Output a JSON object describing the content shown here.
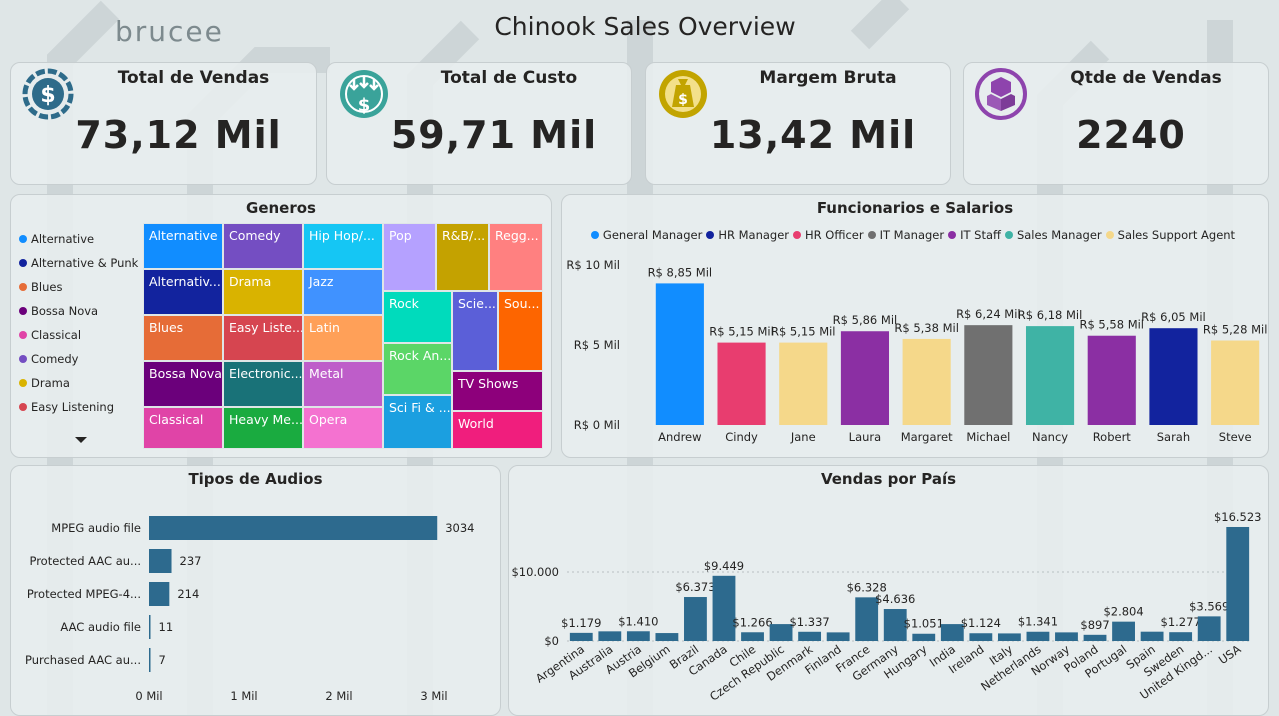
{
  "header": {
    "title": "Chinook Sales Overview",
    "logo_text": "brucee"
  },
  "kpis": [
    {
      "label": "Total de Vendas",
      "value": "73,12 Mil",
      "icon": "dollar-coin-icon",
      "color": "#2e6b8a"
    },
    {
      "label": "Total de Custo",
      "value": "59,71 Mil",
      "icon": "money-down-icon",
      "color": "#3aa39a"
    },
    {
      "label": "Margem Bruta",
      "value": "13,42 Mil",
      "icon": "money-bag-icon",
      "color": "#c2a400"
    },
    {
      "label": "Qtde de Vendas",
      "value": "2240",
      "icon": "boxes-icon",
      "color": "#8e44ad"
    }
  ],
  "genres": {
    "title": "Generos",
    "legend": [
      {
        "name": "Alternative",
        "color": "#118dff"
      },
      {
        "name": "Alternative & Punk",
        "color": "#12239e"
      },
      {
        "name": "Blues",
        "color": "#e66c37"
      },
      {
        "name": "Bossa Nova",
        "color": "#6b007b"
      },
      {
        "name": "Classical",
        "color": "#e044a7"
      },
      {
        "name": "Comedy",
        "color": "#744ec2"
      },
      {
        "name": "Drama",
        "color": "#d9b300"
      },
      {
        "name": "Easy Listening",
        "color": "#d64550"
      }
    ],
    "cells": [
      {
        "label": "Alternative",
        "color": "#118dff"
      },
      {
        "label": "Alternativ...",
        "color": "#12239e"
      },
      {
        "label": "Blues",
        "color": "#e66c37"
      },
      {
        "label": "Bossa Nova",
        "color": "#6b007b"
      },
      {
        "label": "Classical",
        "color": "#e044a7"
      },
      {
        "label": "Comedy",
        "color": "#744ec2"
      },
      {
        "label": "Drama",
        "color": "#d9b300"
      },
      {
        "label": "Easy Liste...",
        "color": "#d64550"
      },
      {
        "label": "Electronic...",
        "color": "#197278"
      },
      {
        "label": "Heavy Me...",
        "color": "#1aab40"
      },
      {
        "label": "Hip Hop/...",
        "color": "#15c6f4"
      },
      {
        "label": "Jazz",
        "color": "#4092ff"
      },
      {
        "label": "Latin",
        "color": "#ffa058"
      },
      {
        "label": "Metal",
        "color": "#be5dc9"
      },
      {
        "label": "Opera",
        "color": "#f472d0"
      },
      {
        "label": "Pop",
        "color": "#b5a1ff"
      },
      {
        "label": "R&B/...",
        "color": "#c4a200"
      },
      {
        "label": "Regg...",
        "color": "#ff8080"
      },
      {
        "label": "Rock",
        "color": "#00dbbc"
      },
      {
        "label": "Scie...",
        "color": "#5b5fd8"
      },
      {
        "label": "Sou...",
        "color": "#fd6500"
      },
      {
        "label": "Rock An...",
        "color": "#5bd667"
      },
      {
        "label": "TV Shows",
        "color": "#8d007b"
      },
      {
        "label": "Sci Fi & ...",
        "color": "#1b9fe0"
      },
      {
        "label": "World",
        "color": "#f01e7d"
      }
    ]
  },
  "chart_data": [
    {
      "type": "bar",
      "title": "Funcionarios e Salarios",
      "legend": [
        {
          "name": "General Manager",
          "color": "#118dff"
        },
        {
          "name": "HR Manager",
          "color": "#12239e"
        },
        {
          "name": "HR Officer",
          "color": "#e83d6f"
        },
        {
          "name": "IT Manager",
          "color": "#707070"
        },
        {
          "name": "IT Staff",
          "color": "#8b2fa3"
        },
        {
          "name": "Sales Manager",
          "color": "#3fb3a5"
        },
        {
          "name": "Sales Support Agent",
          "color": "#f5d88a"
        }
      ],
      "categories": [
        "Andrew",
        "Cindy",
        "Jane",
        "Laura",
        "Margaret",
        "Michael",
        "Nancy",
        "Robert",
        "Sarah",
        "Steve"
      ],
      "values": [
        8.85,
        5.15,
        5.15,
        5.86,
        5.38,
        6.24,
        6.18,
        5.58,
        6.05,
        5.28
      ],
      "data_labels": [
        "R$ 8,85 Mil",
        "R$ 5,15 Mil",
        "R$ 5,15 Mil",
        "R$ 5,86 Mil",
        "R$ 5,38 Mil",
        "R$ 6,24 Mil",
        "R$ 6,18 Mil",
        "R$ 5,58 Mil",
        "R$ 6,05 Mil",
        "R$ 5,28 Mil"
      ],
      "colors": [
        "#118dff",
        "#e83d6f",
        "#f5d88a",
        "#8b2fa3",
        "#f5d88a",
        "#707070",
        "#3fb3a5",
        "#8b2fa3",
        "#12239e",
        "#f5d88a"
      ],
      "ylim": [
        0,
        10
      ],
      "yticks": [
        "R$ 0 Mil",
        "R$ 5 Mil",
        "R$ 10 Mil"
      ],
      "grid": false,
      "legend_position": "top"
    },
    {
      "type": "bar",
      "orientation": "horizontal",
      "title": "Tipos de Audios",
      "categories": [
        "MPEG audio file",
        "Protected AAC au...",
        "Protected MPEG-4...",
        "AAC audio file",
        "Purchased AAC au..."
      ],
      "values": [
        3034,
        237,
        214,
        11,
        7
      ],
      "data_labels": [
        "3034",
        "237",
        "214",
        "11",
        "7"
      ],
      "color": "#2d6a8e",
      "xlim": [
        0,
        3000
      ],
      "xticks": [
        "0 Mil",
        "1 Mil",
        "2 Mil",
        "3 Mil"
      ]
    },
    {
      "type": "bar",
      "title": "Vendas por País",
      "categories": [
        "Argentina",
        "Australia",
        "Austria",
        "Belgium",
        "Brazil",
        "Canada",
        "Chile",
        "Czech Republic",
        "Denmark",
        "Finland",
        "France",
        "Germany",
        "Hungary",
        "India",
        "Ireland",
        "Italy",
        "Netherlands",
        "Norway",
        "Poland",
        "Portugal",
        "Spain",
        "Sweden",
        "United Kingd...",
        "USA"
      ],
      "values": [
        1179,
        1400,
        1410,
        1150,
        6373,
        9449,
        1266,
        2450,
        1337,
        1250,
        6328,
        4636,
        1051,
        2450,
        1124,
        1100,
        1341,
        1250,
        897,
        2804,
        1350,
        1277,
        3569,
        16523
      ],
      "data_labels": [
        "$1.179",
        "",
        "$1.410",
        "",
        "$6.373",
        "$9.449",
        "$1.266",
        "",
        "$1.337",
        "",
        "$6.328",
        "$4.636",
        "$1.051",
        "",
        "$1.124",
        "",
        "$1.341",
        "",
        "$897",
        "$2.804",
        "",
        "$1.277",
        "$3.569",
        "$16.523"
      ],
      "color": "#2d6a8e",
      "ylim": [
        0,
        17000
      ],
      "yticks": [
        "$0",
        "$10.000"
      ],
      "grid": true
    }
  ]
}
